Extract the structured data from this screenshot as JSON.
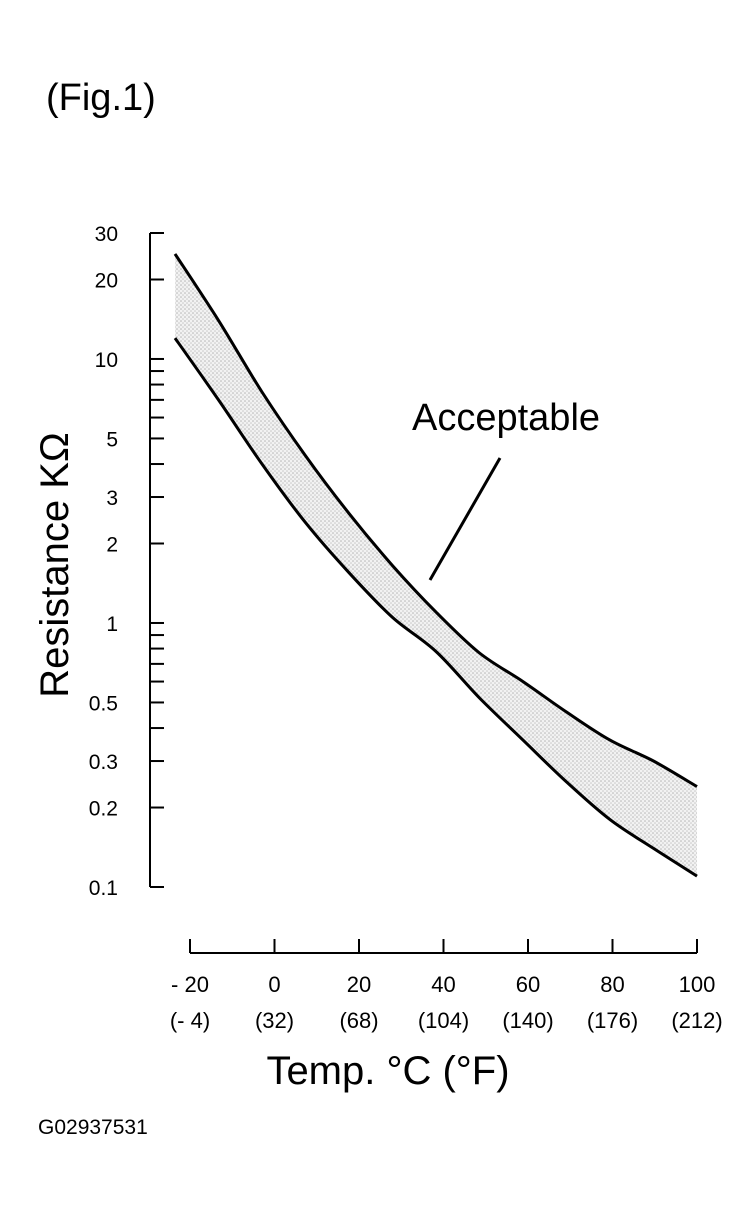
{
  "figure_label": "(Fig.1)",
  "figure_code": "G02937531",
  "chart_data": {
    "type": "area",
    "ylabel": "Resistance KΩ",
    "xlabel": "Temp. °C (°F)",
    "y_scale": "log",
    "ylim": [
      0.1,
      30
    ],
    "xlim": [
      -20,
      100
    ],
    "y_ticks": [
      {
        "value": 30,
        "label": "30"
      },
      {
        "value": 20,
        "label": "20"
      },
      {
        "value": 10,
        "label": "10"
      },
      {
        "value": 5,
        "label": "5"
      },
      {
        "value": 3,
        "label": "3"
      },
      {
        "value": 2,
        "label": "2"
      },
      {
        "value": 1,
        "label": "1"
      },
      {
        "value": 0.5,
        "label": "0.5"
      },
      {
        "value": 0.3,
        "label": "0.3"
      },
      {
        "value": 0.2,
        "label": "0.2"
      },
      {
        "value": 0.1,
        "label": "0.1"
      }
    ],
    "y_minor_ticks": [
      9,
      8,
      7,
      6,
      4,
      0.9,
      0.8,
      0.7,
      0.6,
      0.4
    ],
    "x_ticks": [
      {
        "value": -20,
        "label": "- 20",
        "label_f": "(- 4)"
      },
      {
        "value": 0,
        "label": "0",
        "label_f": "(32)"
      },
      {
        "value": 20,
        "label": "20",
        "label_f": "(68)"
      },
      {
        "value": 40,
        "label": "40",
        "label_f": "(104)"
      },
      {
        "value": 60,
        "label": "60",
        "label_f": "(140)"
      },
      {
        "value": 80,
        "label": "80",
        "label_f": "(176)"
      },
      {
        "value": 100,
        "label": "100",
        "label_f": "(212)"
      }
    ],
    "upper_bound": {
      "x": [
        -20,
        -10,
        0,
        10,
        20,
        30,
        40,
        50,
        60,
        70,
        80,
        90,
        100
      ],
      "y": [
        25,
        14,
        7.5,
        4.3,
        2.6,
        1.65,
        1.1,
        0.77,
        0.6,
        0.46,
        0.36,
        0.3,
        0.24
      ]
    },
    "lower_bound": {
      "x": [
        -20,
        -10,
        0,
        10,
        20,
        30,
        40,
        50,
        60,
        70,
        80,
        90,
        100
      ],
      "y": [
        12,
        7,
        4,
        2.4,
        1.55,
        1.05,
        0.78,
        0.52,
        0.36,
        0.25,
        0.18,
        0.14,
        0.11
      ]
    },
    "annotation": {
      "text": "Acceptable",
      "x": 38,
      "y": 1.45
    }
  }
}
